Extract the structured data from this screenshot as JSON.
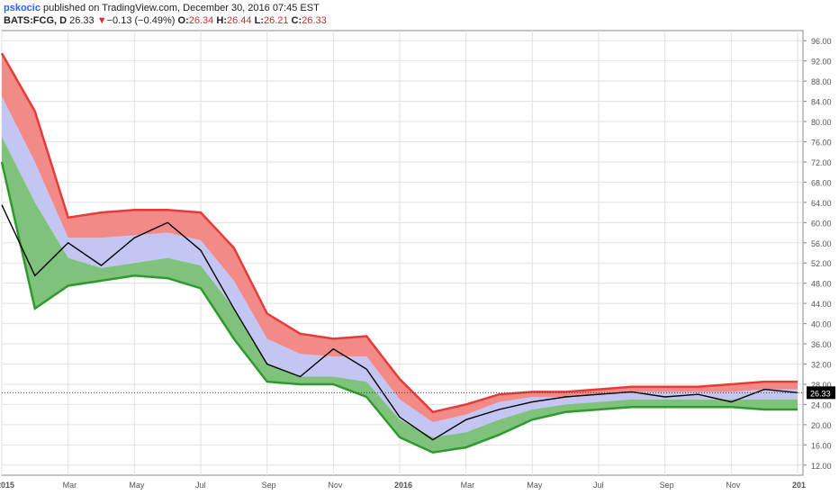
{
  "header": {
    "author": "pskocic",
    "published_text": "published on TradingView.com, December 30, 2016 07:45 EST",
    "symbol": "BATS:FCG, D",
    "last": "26.33",
    "change_arrow": "▼",
    "change": "−0.13 (−0.49%)",
    "open_label": "O:",
    "open": "26.34",
    "high_label": "H:",
    "high": "26.44",
    "low_label": "L:",
    "low": "26.21",
    "close_label": "C:",
    "close": "26.33"
  },
  "colors": {
    "price_line": "#000000",
    "upper_band": "#f28b88",
    "upper_edge": "#e83a36",
    "middle_band": "#c3c5f2",
    "lower_band": "#7fc27c",
    "lower_edge": "#2e9a2e",
    "price_label_bg": "#000000"
  },
  "chart_data": {
    "type": "line",
    "x_tick_labels": [
      "2015",
      "Mar",
      "May",
      "Jul",
      "Sep",
      "Nov",
      "2016",
      "Mar",
      "May",
      "Jul",
      "Sep",
      "Nov",
      "201"
    ],
    "y_tick_labels": [
      "96.00",
      "92.00",
      "88.00",
      "84.00",
      "80.00",
      "76.00",
      "72.00",
      "68.00",
      "64.00",
      "60.00",
      "56.00",
      "52.00",
      "48.00",
      "44.00",
      "40.00",
      "36.00",
      "32.00",
      "28.00",
      "24.00",
      "20.00",
      "16.00",
      "12.00"
    ],
    "ylim": [
      10,
      98
    ],
    "last_price_label": "26.33",
    "last_price": 26.33,
    "x_months": [
      0,
      1,
      2,
      3,
      4,
      5,
      6,
      7,
      8,
      9,
      10,
      11,
      12,
      13,
      14,
      15,
      16,
      17,
      18,
      19,
      20,
      21,
      22,
      23,
      24
    ],
    "series": [
      {
        "role": "price",
        "values": [
          63.5,
          49.5,
          56.0,
          51.5,
          57.0,
          60.0,
          54.5,
          43.0,
          32.0,
          29.5,
          35.0,
          31.0,
          21.5,
          17.0,
          21.0,
          23.0,
          24.5,
          25.5,
          26.0,
          26.5,
          25.5,
          26.0,
          24.5,
          27.0,
          26.33
        ]
      },
      {
        "role": "upper_band_top",
        "values": [
          93.5,
          82.0,
          61.0,
          62.0,
          62.5,
          62.5,
          62.0,
          55.0,
          42.0,
          38.0,
          37.0,
          37.5,
          29.0,
          22.5,
          24.0,
          26.0,
          26.5,
          26.5,
          27.0,
          27.5,
          27.5,
          27.5,
          28.0,
          28.5,
          28.5
        ]
      },
      {
        "role": "upper_band_bottom",
        "values": [
          85.0,
          72.0,
          57.0,
          57.0,
          57.5,
          58.0,
          56.5,
          48.5,
          37.0,
          34.0,
          33.5,
          33.5,
          25.0,
          20.5,
          22.0,
          24.5,
          25.5,
          25.5,
          26.0,
          26.5,
          26.5,
          26.5,
          26.5,
          27.0,
          27.0
        ]
      },
      {
        "role": "lower_band_top",
        "values": [
          77.0,
          64.0,
          53.0,
          51.0,
          52.0,
          53.0,
          51.5,
          43.0,
          32.0,
          29.5,
          29.5,
          28.5,
          21.0,
          17.5,
          18.5,
          21.0,
          23.0,
          24.0,
          24.5,
          25.0,
          25.0,
          25.0,
          25.0,
          25.0,
          25.0
        ]
      },
      {
        "role": "lower_band_bottom",
        "values": [
          72.0,
          43.0,
          47.5,
          48.5,
          49.5,
          49.0,
          47.0,
          37.0,
          28.5,
          28.0,
          28.0,
          25.5,
          17.5,
          14.5,
          15.5,
          18.0,
          21.0,
          22.5,
          23.0,
          23.5,
          23.5,
          23.5,
          23.5,
          23.0,
          23.0
        ]
      }
    ],
    "grid": true
  }
}
